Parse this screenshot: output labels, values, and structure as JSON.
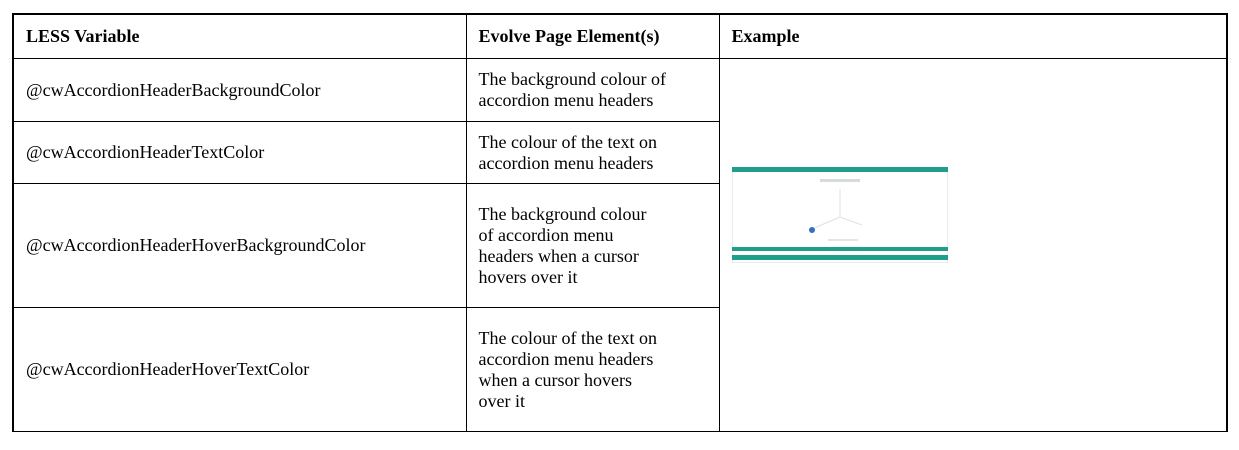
{
  "table": {
    "headers": [
      "LESS Variable",
      "Evolve Page Element(s)",
      "Example"
    ],
    "rows": [
      [
        "@cwAccordionHeaderBackgroundColor",
        "The background colour of accordion menu headers"
      ],
      [
        "@cwAccordionHeaderTextColor",
        "The colour of the text on accordion menu headers"
      ],
      [
        "@cwAccordionHeaderHoverBackgroundColor",
        "The background colour of accordion menu headers when a cursor hovers over it"
      ],
      [
        "@cwAccordionHeaderHoverTextColor",
        "The colour of the text on accordion menu headers when a cursor hovers over it"
      ]
    ]
  }
}
